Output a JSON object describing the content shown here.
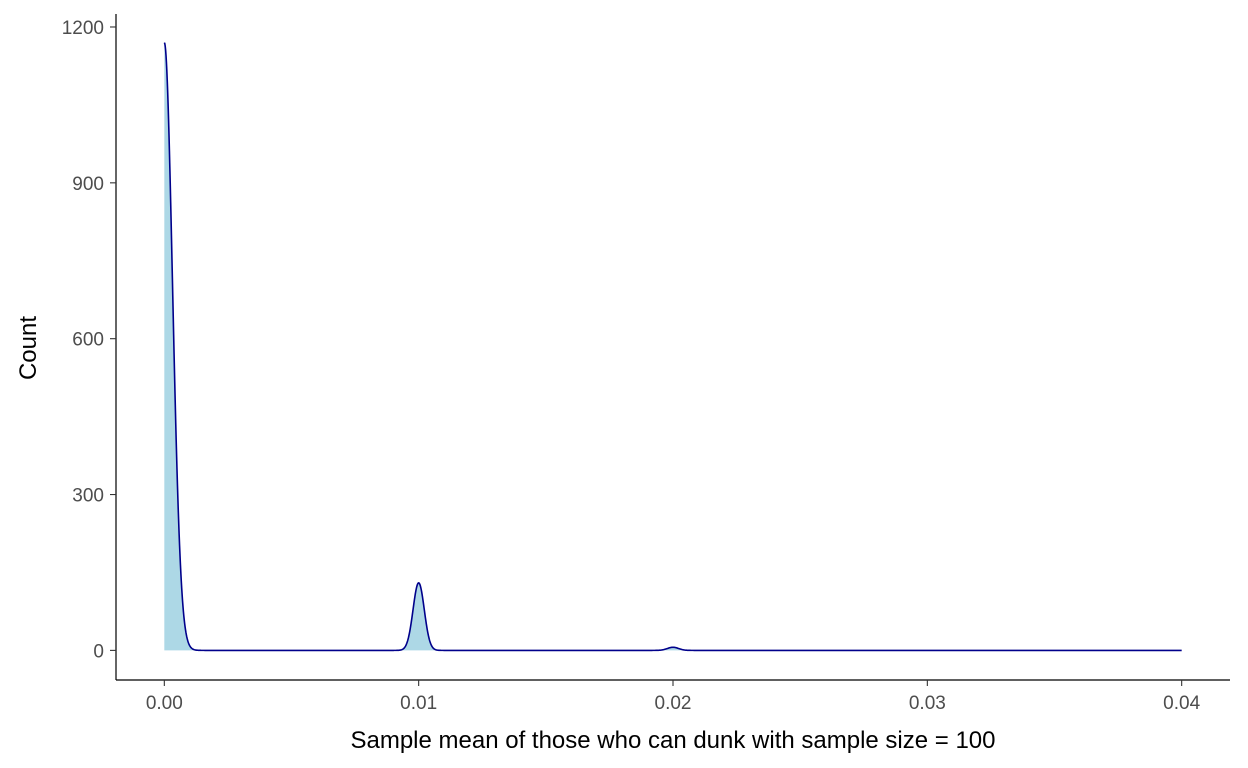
{
  "chart_data": {
    "type": "area",
    "title": "",
    "xlabel": "Sample mean of those who can dunk with sample size = 100",
    "ylabel": "Count",
    "xlim": [
      -0.0019,
      0.0419
    ],
    "ylim": [
      -57,
      1225
    ],
    "x_ticks": [
      0.0,
      0.01,
      0.02,
      0.03,
      0.04
    ],
    "x_tick_labels": [
      "0.00",
      "0.01",
      "0.02",
      "0.03",
      "0.04"
    ],
    "y_ticks": [
      0,
      300,
      600,
      900,
      1200
    ],
    "y_tick_labels": [
      "0",
      "300",
      "600",
      "900",
      "1200"
    ],
    "grid": false,
    "legend": "none",
    "colors": {
      "fill": "#add8e6",
      "line": "#00008b",
      "axis": "#000000"
    },
    "series": [
      {
        "peaks": [
          {
            "center": 0.0,
            "height": 1170,
            "sd": 0.00032
          },
          {
            "center": 0.01,
            "height": 130,
            "sd": 0.00022
          },
          {
            "center": 0.02,
            "height": 6,
            "sd": 0.00022
          }
        ],
        "x_range": [
          0.0,
          0.04
        ]
      }
    ]
  }
}
